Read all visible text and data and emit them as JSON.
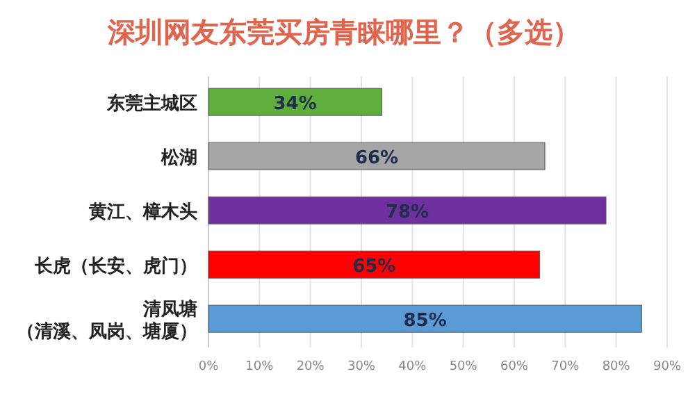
{
  "chart_data": {
    "type": "bar",
    "orientation": "horizontal",
    "title": "深圳网友东莞买房青睐哪里？（多选）",
    "categories": [
      "东莞主城区",
      "松湖",
      "黄江、樟木头",
      "长虎（长安、虎门）",
      "清凤塘（清溪、凤岗、塘厦）"
    ],
    "values": [
      34,
      66,
      78,
      65,
      85
    ],
    "colors": [
      "#5fae3c",
      "#a6a6a6",
      "#7030a0",
      "#ff0000",
      "#5b9bd5"
    ],
    "value_labels": [
      "34%",
      "66%",
      "78%",
      "65%",
      "85%"
    ],
    "xlim": [
      0,
      90
    ],
    "xticks": [
      {
        "value": 0,
        "label": "0%"
      },
      {
        "value": 10,
        "label": "10%"
      },
      {
        "value": 20,
        "label": "20%"
      },
      {
        "value": 30,
        "label": "30%"
      },
      {
        "value": 40,
        "label": "40%"
      },
      {
        "value": 50,
        "label": "50%"
      },
      {
        "value": 60,
        "label": "60%"
      },
      {
        "value": 70,
        "label": "70%"
      },
      {
        "value": 80,
        "label": "80%"
      },
      {
        "value": 90,
        "label": "90%"
      }
    ],
    "grid": "x"
  }
}
